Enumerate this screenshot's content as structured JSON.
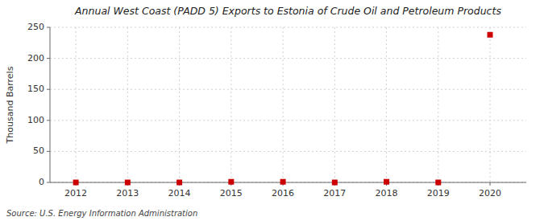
{
  "chart_data": {
    "type": "scatter",
    "title": "Annual West Coast (PADD 5) Exports to Estonia of Crude Oil and Petroleum Products",
    "ylabel": "Thousand Barrels",
    "annotation": "Source: U.S. Energy Information Administration",
    "x": [
      2012,
      2013,
      2014,
      2015,
      2016,
      2017,
      2018,
      2019,
      2020
    ],
    "values": [
      0,
      0,
      0,
      1,
      1,
      0,
      1,
      0,
      238
    ],
    "color": "#cc0000",
    "marker": "square",
    "xlim": [
      2011.5,
      2020.7
    ],
    "xticks": [
      2012,
      2013,
      2014,
      2015,
      2016,
      2017,
      2018,
      2019,
      2020
    ],
    "ylim": [
      0,
      250
    ],
    "yticks": [
      0,
      50,
      100,
      150,
      200,
      250
    ],
    "grid": true
  }
}
